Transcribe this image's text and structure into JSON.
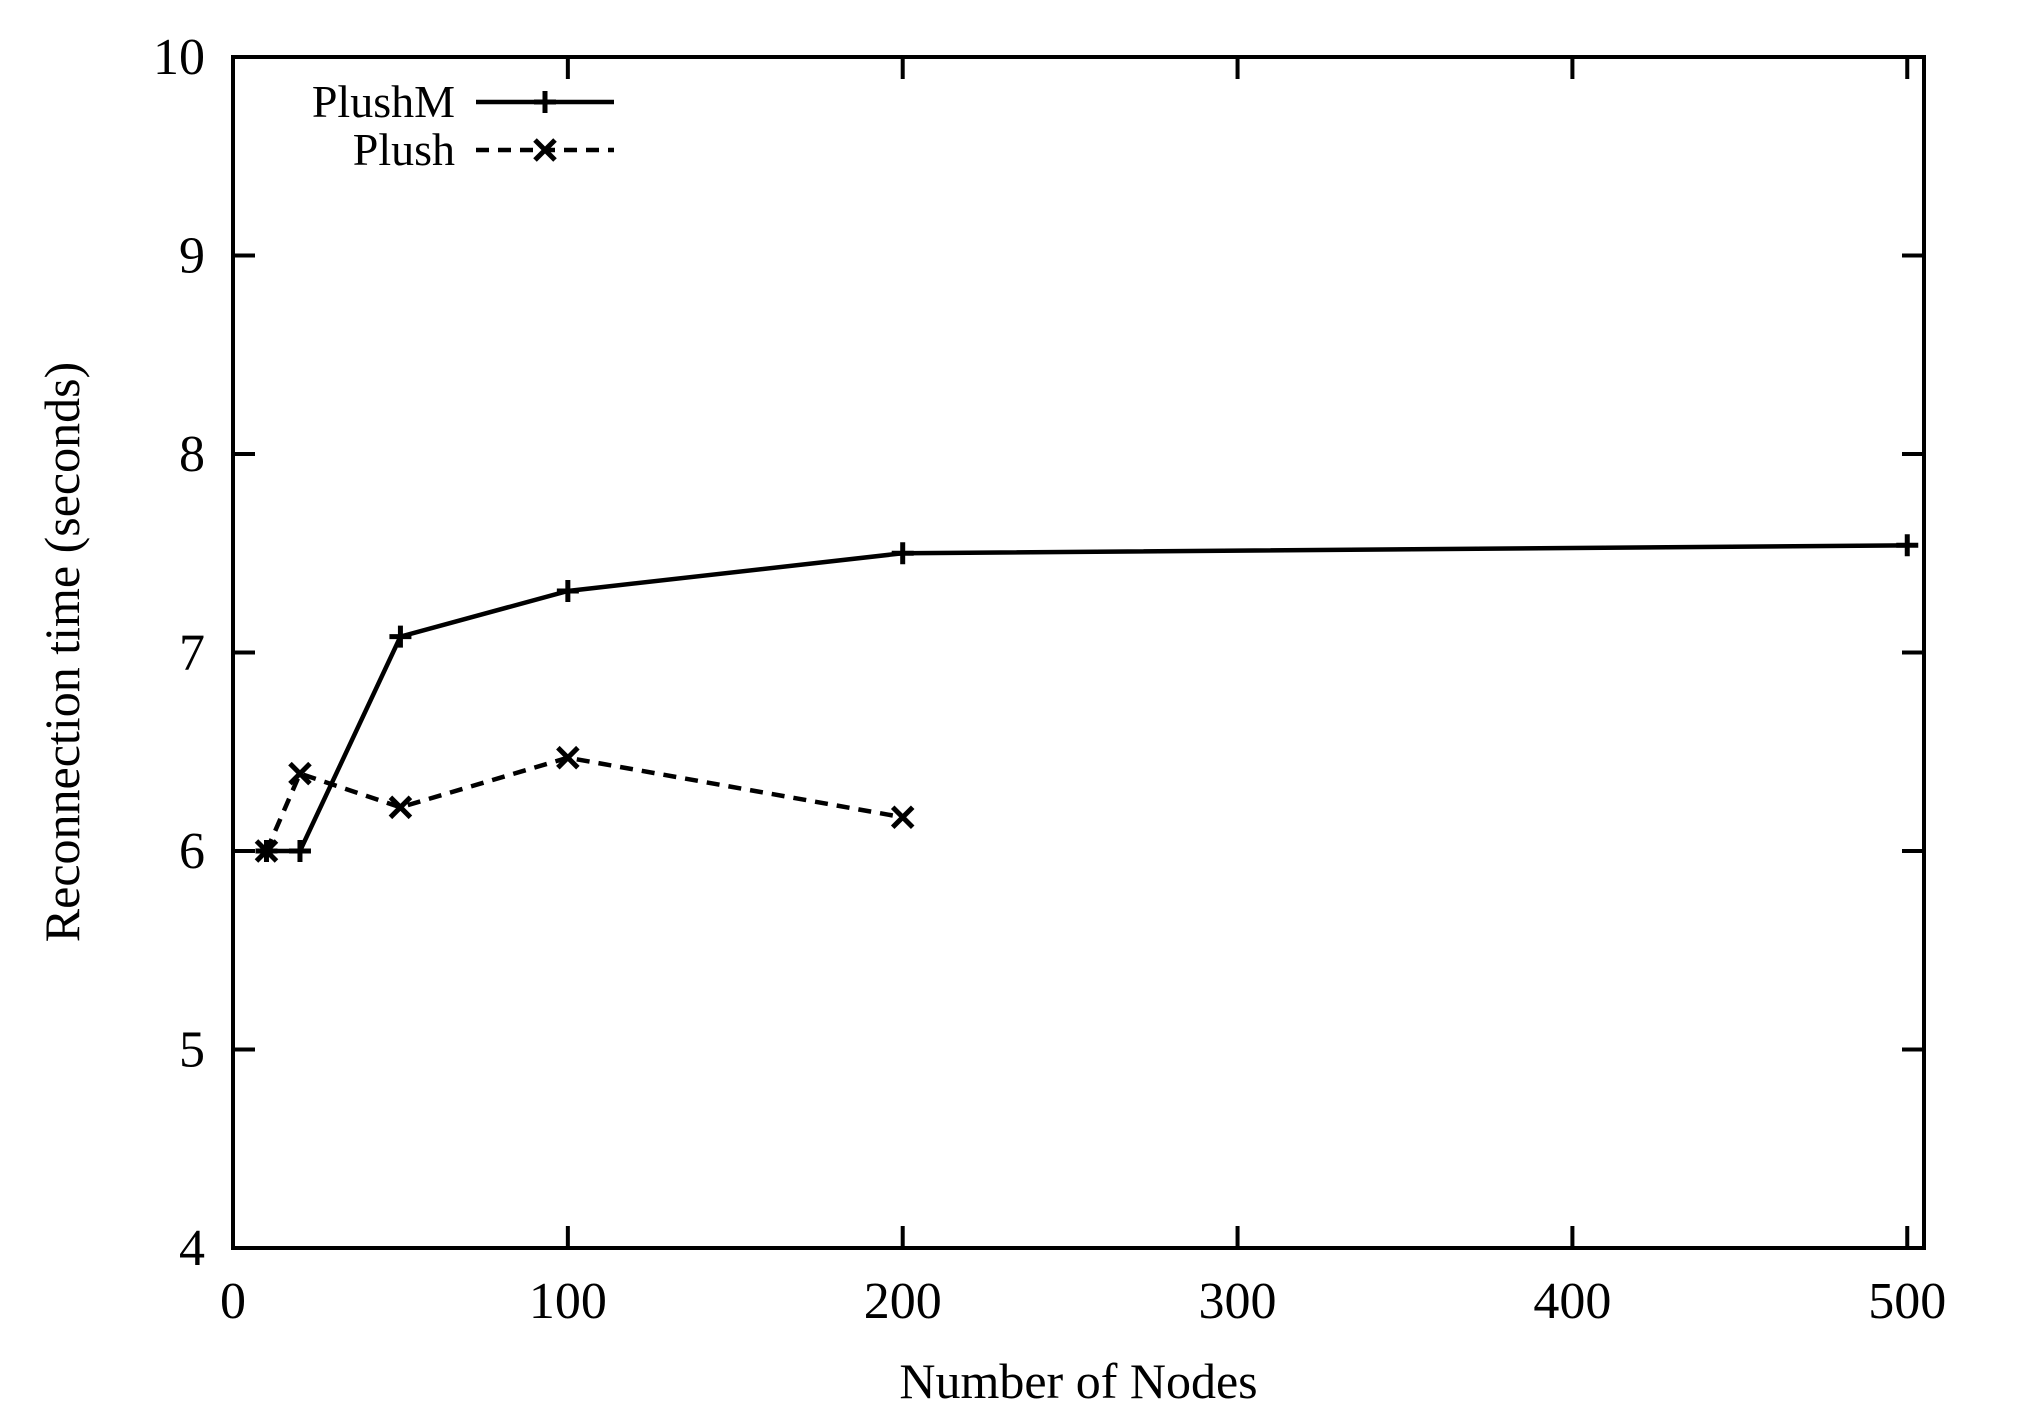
{
  "colors": {
    "foreground": "#000000",
    "background": "#ffffff"
  },
  "chart_data": {
    "type": "line",
    "title": "",
    "xlabel": "Number of Nodes",
    "ylabel": "Reconnection time (seconds)",
    "xlim": [
      0,
      505
    ],
    "ylim": [
      4,
      10
    ],
    "grid": false,
    "legend_position": "top-left",
    "xticks": [
      0,
      100,
      200,
      300,
      400,
      500
    ],
    "yticks": [
      4,
      5,
      6,
      7,
      8,
      9,
      10
    ],
    "series": [
      {
        "name": "PlushM",
        "line_style": "solid",
        "marker": "plus",
        "points": [
          [
            10,
            6.0
          ],
          [
            20,
            6.0
          ],
          [
            50,
            7.08
          ],
          [
            100,
            7.31
          ],
          [
            200,
            7.5
          ],
          [
            500,
            7.54
          ]
        ]
      },
      {
        "name": "Plush",
        "line_style": "dashed",
        "marker": "x",
        "points": [
          [
            10,
            6.0
          ],
          [
            20,
            6.39
          ],
          [
            50,
            6.22
          ],
          [
            100,
            6.47
          ],
          [
            200,
            6.17
          ]
        ]
      }
    ]
  }
}
